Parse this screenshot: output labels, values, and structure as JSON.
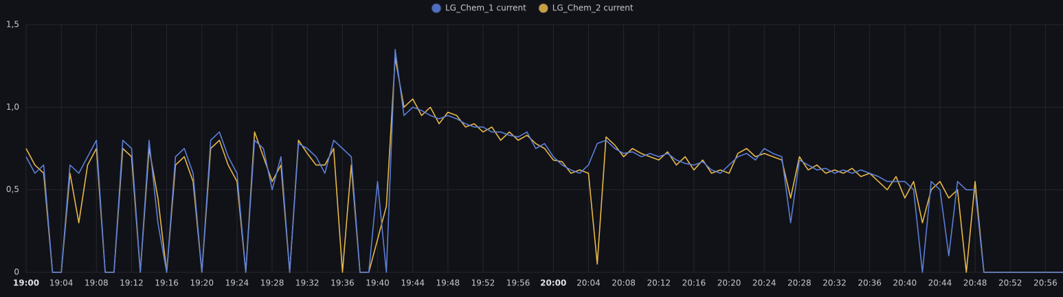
{
  "chart_data": {
    "type": "line",
    "x": [
      "19:00",
      "19:01",
      "19:02",
      "19:03",
      "19:04",
      "19:05",
      "19:06",
      "19:07",
      "19:08",
      "19:09",
      "19:10",
      "19:11",
      "19:12",
      "19:13",
      "19:14",
      "19:15",
      "19:16",
      "19:17",
      "19:18",
      "19:19",
      "19:20",
      "19:21",
      "19:22",
      "19:23",
      "19:24",
      "19:25",
      "19:26",
      "19:27",
      "19:28",
      "19:29",
      "19:30",
      "19:31",
      "19:32",
      "19:33",
      "19:34",
      "19:35",
      "19:36",
      "19:37",
      "19:38",
      "19:39",
      "19:40",
      "19:41",
      "19:42",
      "19:43",
      "19:44",
      "19:45",
      "19:46",
      "19:47",
      "19:48",
      "19:49",
      "19:50",
      "19:51",
      "19:52",
      "19:53",
      "19:54",
      "19:55",
      "19:56",
      "19:57",
      "19:58",
      "19:59",
      "20:00",
      "20:01",
      "20:02",
      "20:03",
      "20:04",
      "20:05",
      "20:06",
      "20:07",
      "20:08",
      "20:09",
      "20:10",
      "20:11",
      "20:12",
      "20:13",
      "20:14",
      "20:15",
      "20:16",
      "20:17",
      "20:18",
      "20:19",
      "20:20",
      "20:21",
      "20:22",
      "20:23",
      "20:24",
      "20:25",
      "20:26",
      "20:27",
      "20:28",
      "20:29",
      "20:30",
      "20:31",
      "20:32",
      "20:33",
      "20:34",
      "20:35",
      "20:36",
      "20:37",
      "20:38",
      "20:39",
      "20:40",
      "20:41",
      "20:42",
      "20:43",
      "20:44",
      "20:45",
      "20:46",
      "20:47",
      "20:48",
      "20:49",
      "20:50",
      "20:51",
      "20:52",
      "20:53",
      "20:54",
      "20:55",
      "20:56",
      "20:57",
      "20:58"
    ],
    "series": [
      {
        "name": "LG_Chem_1 current",
        "color": "#5b7fd9",
        "values": [
          0.7,
          0.6,
          0.65,
          0,
          0,
          0.65,
          0.6,
          0.7,
          0.8,
          0,
          0,
          0.8,
          0.75,
          0,
          0.8,
          0.3,
          0,
          0.7,
          0.75,
          0.6,
          0,
          0.8,
          0.85,
          0.7,
          0.6,
          0,
          0.8,
          0.75,
          0.5,
          0.7,
          0,
          0.78,
          0.75,
          0.7,
          0.6,
          0.8,
          0.75,
          0.7,
          0,
          0,
          0.55,
          0,
          1.35,
          0.95,
          1.0,
          0.98,
          0.95,
          0.93,
          0.95,
          0.93,
          0.9,
          0.88,
          0.88,
          0.85,
          0.85,
          0.83,
          0.82,
          0.85,
          0.75,
          0.78,
          0.7,
          0.65,
          0.62,
          0.6,
          0.65,
          0.78,
          0.8,
          0.75,
          0.72,
          0.73,
          0.7,
          0.72,
          0.7,
          0.72,
          0.68,
          0.66,
          0.65,
          0.67,
          0.62,
          0.6,
          0.65,
          0.7,
          0.72,
          0.68,
          0.75,
          0.72,
          0.7,
          0.3,
          0.68,
          0.65,
          0.62,
          0.63,
          0.6,
          0.62,
          0.6,
          0.62,
          0.6,
          0.58,
          0.55,
          0.55,
          0.55,
          0.5,
          0,
          0.55,
          0.5,
          0.1,
          0.55,
          0.5,
          0.5,
          0,
          0,
          0,
          0,
          0,
          0,
          0,
          0,
          0,
          0
        ]
      },
      {
        "name": "LG_Chem_2 current",
        "color": "#e8b84a",
        "values": [
          0.75,
          0.65,
          0.6,
          0,
          0,
          0.6,
          0.3,
          0.65,
          0.75,
          0,
          0,
          0.75,
          0.7,
          0,
          0.75,
          0.45,
          0,
          0.65,
          0.7,
          0.55,
          0,
          0.75,
          0.8,
          0.65,
          0.55,
          0,
          0.85,
          0.7,
          0.55,
          0.65,
          0,
          0.8,
          0.72,
          0.65,
          0.65,
          0.75,
          0,
          0.65,
          0,
          0,
          0.2,
          0.4,
          1.3,
          1.0,
          1.05,
          0.95,
          1.0,
          0.9,
          0.97,
          0.95,
          0.88,
          0.9,
          0.85,
          0.88,
          0.8,
          0.85,
          0.8,
          0.83,
          0.78,
          0.75,
          0.68,
          0.67,
          0.6,
          0.62,
          0.6,
          0.05,
          0.82,
          0.77,
          0.7,
          0.75,
          0.72,
          0.7,
          0.68,
          0.73,
          0.65,
          0.7,
          0.62,
          0.68,
          0.6,
          0.62,
          0.6,
          0.72,
          0.75,
          0.7,
          0.72,
          0.7,
          0.68,
          0.45,
          0.7,
          0.62,
          0.65,
          0.6,
          0.62,
          0.6,
          0.63,
          0.58,
          0.6,
          0.55,
          0.5,
          0.58,
          0.45,
          0.55,
          0.3,
          0.5,
          0.55,
          0.45,
          0.5,
          0,
          0.55,
          0,
          0,
          0,
          0,
          0,
          0,
          0,
          0,
          0,
          0
        ]
      }
    ],
    "xlim": [
      "19:00",
      "20:58"
    ],
    "xticks": [
      "19:00",
      "19:04",
      "19:08",
      "19:12",
      "19:16",
      "19:20",
      "19:24",
      "19:28",
      "19:32",
      "19:36",
      "19:40",
      "19:44",
      "19:48",
      "19:52",
      "19:56",
      "20:00",
      "20:04",
      "20:08",
      "20:12",
      "20:16",
      "20:20",
      "20:24",
      "20:28",
      "20:32",
      "20:36",
      "20:40",
      "20:44",
      "20:48",
      "20:52",
      "20:56"
    ],
    "ylim": [
      0,
      1.5
    ],
    "yticks": [
      0,
      {
        "value": 0.5,
        "label": "0,5"
      },
      {
        "value": 1,
        "label": "1,0"
      },
      {
        "value": 1.5,
        "label": "1,5"
      }
    ],
    "grid": true,
    "legend": "top"
  }
}
